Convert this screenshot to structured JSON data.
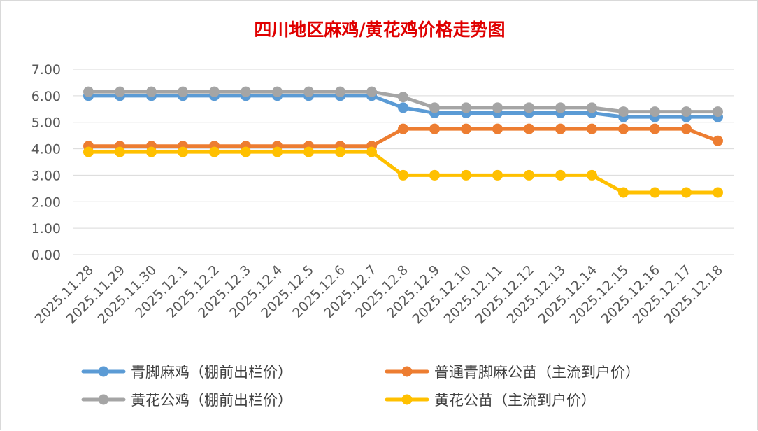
{
  "chart_data": {
    "type": "line",
    "title": "四川地区麻鸡/黄花鸡价格走势图",
    "xlabel": "",
    "ylabel": "",
    "ylim": [
      0,
      7
    ],
    "yticks": [
      "0.00",
      "1.00",
      "2.00",
      "3.00",
      "4.00",
      "5.00",
      "6.00",
      "7.00"
    ],
    "grid": true,
    "legend_position": "bottom",
    "categories": [
      "2025.11.28",
      "2025.11.29",
      "2025.11.30",
      "2025.12.1",
      "2025.12.2",
      "2025.12.3",
      "2025.12.4",
      "2025.12.5",
      "2025.12.6",
      "2025.12.7",
      "2025.12.8",
      "2025.12.9",
      "2025.12.10",
      "2025.12.11",
      "2025.12.12",
      "2025.12.13",
      "2025.12.14",
      "2025.12.15",
      "2025.12.16",
      "2025.12.17",
      "2025.12.18"
    ],
    "series": [
      {
        "name": "青脚麻鸡（棚前出栏价）",
        "color": "#5b9bd5",
        "values": [
          6.0,
          6.0,
          6.0,
          6.0,
          6.0,
          6.0,
          6.0,
          6.0,
          6.0,
          6.0,
          5.55,
          5.35,
          5.35,
          5.35,
          5.35,
          5.35,
          5.35,
          5.2,
          5.2,
          5.2,
          5.2
        ]
      },
      {
        "name": "普通青脚麻公苗（主流到户价）",
        "color": "#ed7d31",
        "values": [
          4.1,
          4.1,
          4.1,
          4.1,
          4.1,
          4.1,
          4.1,
          4.1,
          4.1,
          4.1,
          4.75,
          4.75,
          4.75,
          4.75,
          4.75,
          4.75,
          4.75,
          4.75,
          4.75,
          4.75,
          4.3
        ]
      },
      {
        "name": "黄花公鸡（棚前出栏价）",
        "color": "#a5a5a5",
        "values": [
          6.15,
          6.15,
          6.15,
          6.15,
          6.15,
          6.15,
          6.15,
          6.15,
          6.15,
          6.15,
          5.95,
          5.55,
          5.55,
          5.55,
          5.55,
          5.55,
          5.55,
          5.4,
          5.4,
          5.4,
          5.4
        ]
      },
      {
        "name": "黄花公苗（主流到户价）",
        "color": "#ffc000",
        "values": [
          3.88,
          3.88,
          3.88,
          3.88,
          3.88,
          3.88,
          3.88,
          3.88,
          3.88,
          3.88,
          3.0,
          3.0,
          3.0,
          3.0,
          3.0,
          3.0,
          3.0,
          2.35,
          2.35,
          2.35,
          2.35
        ]
      }
    ]
  }
}
